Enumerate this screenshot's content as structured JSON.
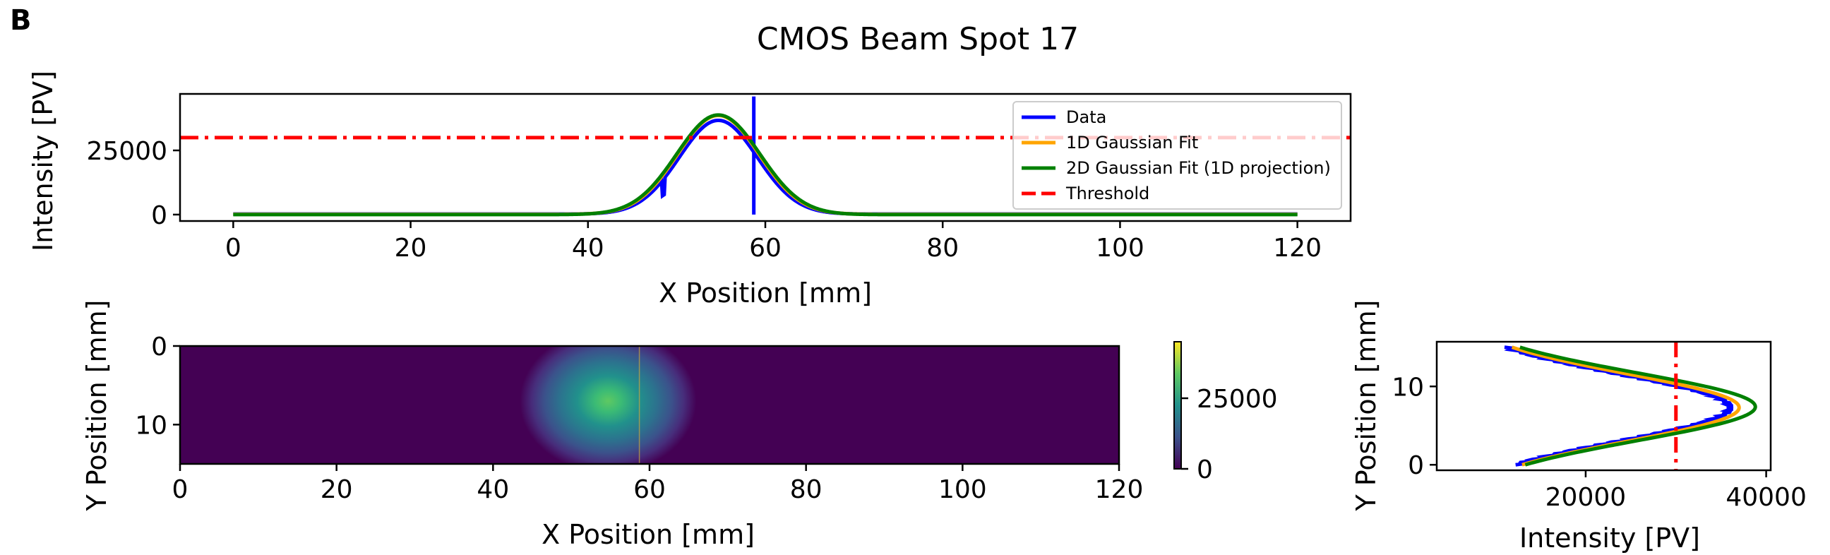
{
  "figure": {
    "panel_label": "B",
    "title": "CMOS Beam Spot 17"
  },
  "chart_data": [
    {
      "id": "x_profile",
      "type": "line",
      "xlabel": "X Position [mm]",
      "ylabel": "Intensity [PV]",
      "xlim": [
        -6,
        126
      ],
      "ylim": [
        -2500,
        47000
      ],
      "xticks": [
        0,
        20,
        40,
        60,
        80,
        100,
        120
      ],
      "yticks": [
        0,
        25000
      ],
      "grid": false,
      "legend": "top-right",
      "threshold": 30000,
      "spike_x": 58.7,
      "spike_top": 46000,
      "dip_x": 48.5,
      "series": [
        {
          "name": "Data",
          "color": "#0000ff",
          "amplitude": 36500,
          "center": 54.7,
          "sigma": 4.4,
          "offset": 200
        },
        {
          "name": "1D Gaussian Fit",
          "color": "#ffa500",
          "amplitude": 38500,
          "center": 54.7,
          "sigma": 4.6,
          "offset": 100
        },
        {
          "name": "2D Gaussian Fit (1D projection)",
          "color": "#008000",
          "amplitude": 38800,
          "center": 54.7,
          "sigma": 4.7,
          "offset": 0
        },
        {
          "name": "Threshold",
          "color": "#ff0000",
          "value": 30000
        }
      ]
    },
    {
      "id": "beam_image",
      "type": "heatmap",
      "xlabel": "X Position [mm]",
      "ylabel": "Y Position [mm]",
      "xlim": [
        0,
        120
      ],
      "ylim": [
        15,
        0
      ],
      "xticks": [
        0,
        20,
        40,
        60,
        80,
        100,
        120
      ],
      "yticks": [
        0,
        10
      ],
      "colormap": "viridis",
      "spot_center": [
        54.7,
        7.0
      ],
      "spot_sigma": [
        4.7,
        3.8
      ],
      "peak": 45000,
      "colorbar_ticks": [
        0,
        25000
      ]
    },
    {
      "id": "y_profile",
      "type": "line",
      "xlabel": "Intensity [PV]",
      "ylabel": "Y Position [mm]",
      "xlim": [
        3500,
        40500
      ],
      "ylim": [
        -0.7,
        15.7
      ],
      "xticks": [
        20000,
        40000
      ],
      "yticks": [
        0,
        10
      ],
      "threshold": 30000,
      "series": [
        {
          "name": "Data",
          "color": "#0000ff",
          "amplitude": 30500,
          "center": 7.3,
          "sigma": 4.2,
          "offset": 5500
        },
        {
          "name": "1D Gaussian Fit",
          "color": "#ffa500",
          "amplitude": 31500,
          "center": 7.3,
          "sigma": 4.3,
          "offset": 5500
        },
        {
          "name": "2D Gaussian Fit (1D projection)",
          "color": "#008000",
          "amplitude": 33000,
          "center": 7.4,
          "sigma": 4.3,
          "offset": 5800
        },
        {
          "name": "Threshold",
          "color": "#ff0000",
          "value": 30000
        }
      ]
    }
  ]
}
